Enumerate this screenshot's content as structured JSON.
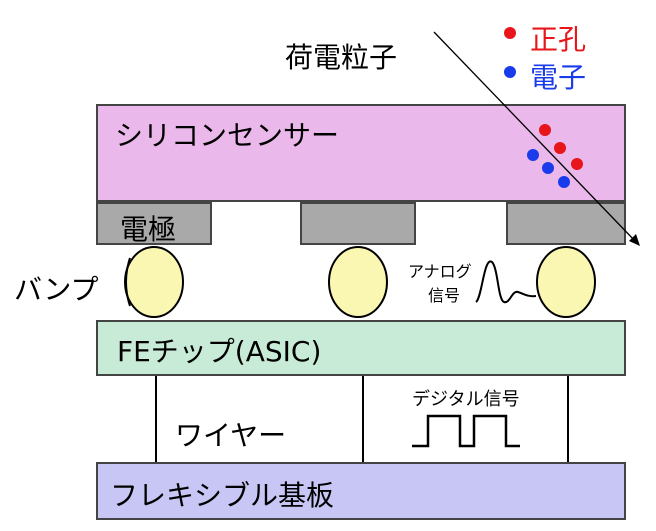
{
  "labels": {
    "charged_particle": "荷電粒子",
    "hole": "正孔",
    "electron": "電子",
    "sensor": "シリコンセンサー",
    "electrode": "電極",
    "bump": "バンプ",
    "analog_line1": "アナログ",
    "analog_line2": "信号",
    "fe_chip": "FEチップ(ASIC)",
    "wire": "ワイヤー",
    "digital": "デジタル信号",
    "flex": "フレキシブル基板"
  },
  "colors": {
    "sensor": "#EAB8EA",
    "electrode": "#A9A9A9",
    "bump": "#FAF7B2",
    "fe_chip": "#C8EBD8",
    "flex": "#C7C6F4",
    "hole": "#E8151A",
    "electron": "#1A3BEB"
  }
}
